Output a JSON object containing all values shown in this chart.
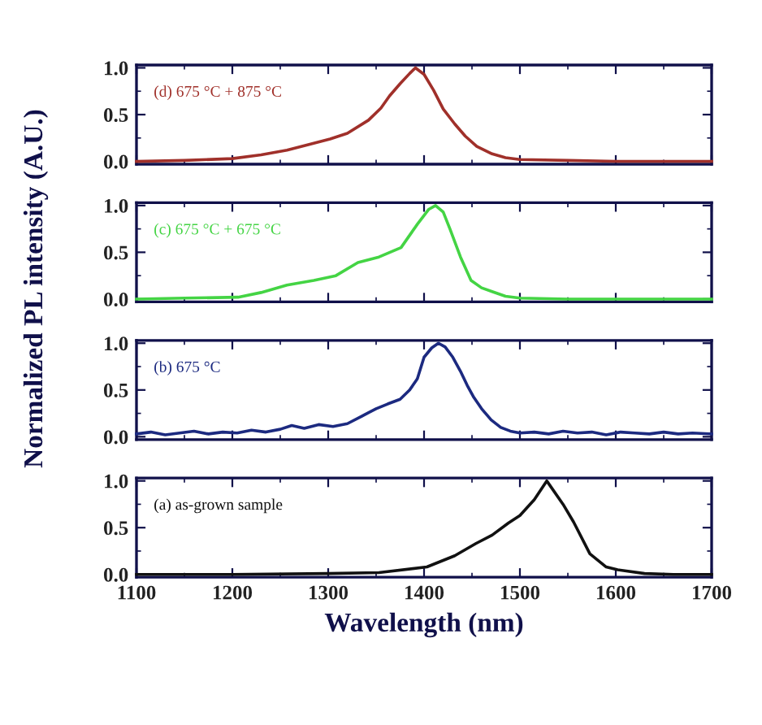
{
  "chart_data": [
    {
      "type": "line",
      "annotations": [
        "(d) 675 °C + 875 °C"
      ],
      "ylabel": "Normalized PL intensity (A.U.)",
      "tick_labels": "y",
      "xlim": [
        1100,
        1700
      ],
      "ylim": [
        -0.03,
        1.03
      ],
      "yticks": [
        {
          "value": 0,
          "label": "0.0"
        },
        {
          "value": 0.5,
          "label": "0.5"
        },
        {
          "value": 1,
          "label": "1.0"
        }
      ],
      "xticks": [
        1100,
        1200,
        1300,
        1400,
        1500,
        1600,
        1700
      ],
      "x": [
        1100,
        1150,
        1200,
        1230,
        1257,
        1280,
        1302,
        1320,
        1342,
        1355,
        1364,
        1375,
        1385,
        1391,
        1400,
        1410,
        1420,
        1432,
        1443,
        1455,
        1471,
        1485,
        1500,
        1550,
        1600,
        1650,
        1700
      ],
      "series": [
        {
          "color": "#a0302a",
          "values": [
            0.0,
            0.01,
            0.03,
            0.07,
            0.12,
            0.18,
            0.24,
            0.3,
            0.44,
            0.57,
            0.7,
            0.83,
            0.94,
            1.0,
            0.93,
            0.76,
            0.56,
            0.4,
            0.27,
            0.16,
            0.08,
            0.04,
            0.02,
            0.01,
            0.0,
            0.0,
            0.0
          ]
        }
      ]
    },
    {
      "type": "line",
      "annotations": [
        "(c) 675 °C + 675 °C"
      ],
      "tick_labels": "y",
      "xlim": [
        1100,
        1700
      ],
      "ylim": [
        -0.03,
        1.03
      ],
      "yticks": [
        {
          "value": 0,
          "label": "0.0"
        },
        {
          "value": 0.5,
          "label": "0.5"
        },
        {
          "value": 1,
          "label": "1.0"
        }
      ],
      "xticks": [
        1100,
        1200,
        1300,
        1400,
        1500,
        1600,
        1700
      ],
      "x": [
        1100,
        1150,
        1206,
        1230,
        1257,
        1285,
        1308,
        1331,
        1353,
        1376,
        1393,
        1405,
        1412,
        1420,
        1427,
        1438,
        1449,
        1460,
        1471,
        1485,
        1500,
        1550,
        1600,
        1650,
        1700
      ],
      "series": [
        {
          "color": "#44d444",
          "values": [
            0.0,
            0.01,
            0.02,
            0.07,
            0.15,
            0.2,
            0.25,
            0.39,
            0.45,
            0.55,
            0.8,
            0.96,
            1.0,
            0.93,
            0.75,
            0.45,
            0.2,
            0.12,
            0.08,
            0.03,
            0.01,
            0.0,
            0.0,
            0.0,
            0.0
          ]
        }
      ]
    },
    {
      "type": "line",
      "annotations": [
        "(b) 675 °C"
      ],
      "tick_labels": "y",
      "xlim": [
        1100,
        1700
      ],
      "ylim": [
        -0.03,
        1.03
      ],
      "yticks": [
        {
          "value": 0,
          "label": "0.0"
        },
        {
          "value": 0.5,
          "label": "0.5"
        },
        {
          "value": 1,
          "label": "1.0"
        }
      ],
      "xticks": [
        1100,
        1200,
        1300,
        1400,
        1500,
        1600,
        1700
      ],
      "x": [
        1100,
        1115,
        1130,
        1145,
        1160,
        1175,
        1190,
        1205,
        1220,
        1235,
        1250,
        1262,
        1275,
        1290,
        1305,
        1320,
        1335,
        1350,
        1362,
        1375,
        1385,
        1393,
        1400,
        1408,
        1415,
        1422,
        1430,
        1438,
        1445,
        1452,
        1460,
        1470,
        1480,
        1490,
        1500,
        1515,
        1530,
        1545,
        1560,
        1575,
        1590,
        1605,
        1620,
        1635,
        1650,
        1665,
        1680,
        1700
      ],
      "series": [
        {
          "color": "#1c2a80",
          "values": [
            0.03,
            0.05,
            0.02,
            0.04,
            0.06,
            0.03,
            0.05,
            0.04,
            0.07,
            0.05,
            0.08,
            0.12,
            0.09,
            0.13,
            0.11,
            0.14,
            0.22,
            0.3,
            0.35,
            0.4,
            0.5,
            0.62,
            0.85,
            0.95,
            1.0,
            0.96,
            0.85,
            0.7,
            0.55,
            0.42,
            0.3,
            0.18,
            0.1,
            0.06,
            0.04,
            0.05,
            0.03,
            0.06,
            0.04,
            0.05,
            0.02,
            0.05,
            0.04,
            0.03,
            0.05,
            0.03,
            0.04,
            0.03
          ]
        }
      ]
    },
    {
      "type": "line",
      "annotations": [
        "(a) as-grown sample"
      ],
      "xlabel": "Wavelength (nm)",
      "xlim": [
        1100,
        1700
      ],
      "ylim": [
        -0.03,
        1.03
      ],
      "yticks": [
        {
          "value": 0,
          "label": "0.0"
        },
        {
          "value": 0.5,
          "label": "0.5"
        },
        {
          "value": 1,
          "label": "1.0"
        }
      ],
      "xticks": [
        1100,
        1200,
        1300,
        1400,
        1500,
        1600,
        1700
      ],
      "x": [
        1100,
        1200,
        1300,
        1353,
        1403,
        1432,
        1454,
        1471,
        1488,
        1500,
        1515,
        1528,
        1545,
        1556,
        1573,
        1590,
        1602,
        1630,
        1660,
        1700
      ],
      "series": [
        {
          "color": "#111111",
          "values": [
            0.0,
            0.0,
            0.01,
            0.02,
            0.08,
            0.2,
            0.33,
            0.42,
            0.55,
            0.63,
            0.8,
            1.0,
            0.75,
            0.56,
            0.22,
            0.08,
            0.05,
            0.01,
            0.0,
            0.0
          ]
        }
      ]
    }
  ]
}
